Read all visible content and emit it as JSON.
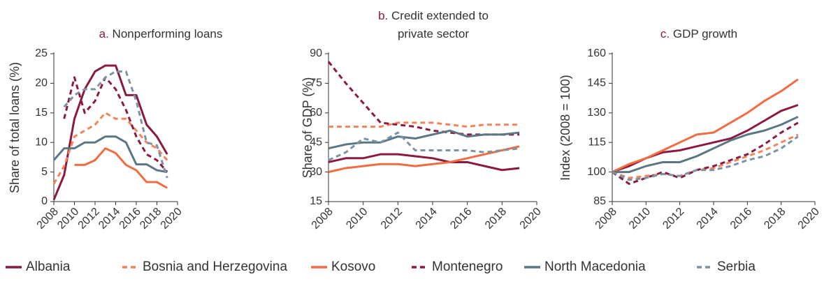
{
  "chart_data": [
    {
      "type": "line",
      "panel": "a.",
      "panel_color": "#8b1a3e",
      "title": [
        "Nonperforming loans"
      ],
      "y_label": "Share of total loans (%)",
      "x": [
        2008,
        2009,
        2010,
        2011,
        2012,
        2013,
        2014,
        2015,
        2016,
        2017,
        2018,
        2019
      ],
      "xlim": [
        2008,
        2020
      ],
      "xticks": [
        2008,
        2010,
        2012,
        2014,
        2016,
        2018,
        2020
      ],
      "ylim": [
        0,
        25
      ],
      "yticks": [
        0,
        5,
        10,
        15,
        20,
        25
      ],
      "grid": false,
      "series": [
        {
          "name": "Albania",
          "color": "#8b1a3e",
          "dashed": false,
          "values": [
            0.3,
            4.5,
            14,
            19,
            22,
            23,
            23,
            18,
            18,
            13,
            11,
            8
          ]
        },
        {
          "name": "Bosnia and Herzegovina",
          "color": "#f4825a",
          "dashed": true,
          "values": [
            3,
            6,
            11,
            12,
            13,
            15,
            14,
            14,
            12,
            10,
            9,
            7
          ]
        },
        {
          "name": "Kosovo",
          "color": "#f26b41",
          "dashed": false,
          "values": [
            null,
            null,
            6.2,
            6.2,
            7,
            9,
            8.2,
            6.2,
            5.3,
            3.3,
            3.3,
            2.3
          ]
        },
        {
          "name": "Montenegro",
          "color": "#8b1a3e",
          "dashed": true,
          "values": [
            null,
            14,
            21,
            15,
            17,
            21,
            19,
            15.5,
            11,
            8,
            7,
            5
          ]
        },
        {
          "name": "North Macedonia",
          "color": "#5b7684",
          "dashed": false,
          "values": [
            7,
            9,
            9,
            10,
            10,
            11,
            11,
            10,
            6.3,
            6.3,
            5.3,
            5
          ]
        },
        {
          "name": "Serbia",
          "color": "#7b93a3",
          "dashed": true,
          "values": [
            null,
            16,
            18,
            19,
            19,
            21,
            22,
            22,
            17,
            10,
            9.5,
            4
          ]
        }
      ]
    },
    {
      "type": "line",
      "panel": "b.",
      "panel_color": "#8b1a3e",
      "title": [
        "Credit extended to",
        "private sector"
      ],
      "y_label": "Share of GDP (%)",
      "x": [
        2008,
        2009,
        2010,
        2011,
        2012,
        2013,
        2014,
        2015,
        2016,
        2017,
        2018,
        2019
      ],
      "xlim": [
        2008,
        2020
      ],
      "xticks": [
        2008,
        2010,
        2012,
        2014,
        2016,
        2018,
        2020
      ],
      "ylim": [
        15,
        90
      ],
      "yticks": [
        15,
        30,
        45,
        60,
        75,
        90
      ],
      "grid": false,
      "series": [
        {
          "name": "Albania",
          "color": "#8b1a3e",
          "dashed": false,
          "values": [
            35,
            37,
            37,
            39,
            39,
            38,
            37,
            35,
            35,
            33,
            31,
            32
          ]
        },
        {
          "name": "Bosnia and Herzegovina",
          "color": "#f4825a",
          "dashed": true,
          "values": [
            53,
            53,
            53,
            53,
            55,
            55,
            55,
            54,
            53,
            54,
            54,
            54
          ]
        },
        {
          "name": "Kosovo",
          "color": "#f26b41",
          "dashed": false,
          "values": [
            30,
            32,
            33,
            34,
            34,
            33,
            34,
            35,
            37,
            39,
            41,
            43
          ]
        },
        {
          "name": "Montenegro",
          "color": "#8b1a3e",
          "dashed": true,
          "values": [
            86,
            75,
            65,
            55,
            54,
            53,
            51,
            50,
            49,
            49,
            49,
            49
          ]
        },
        {
          "name": "North Macedonia",
          "color": "#5b7684",
          "dashed": false,
          "values": [
            42,
            44,
            45,
            45,
            48,
            47,
            49,
            51,
            48,
            49,
            49,
            50
          ]
        },
        {
          "name": "Serbia",
          "color": "#7b93a3",
          "dashed": true,
          "values": [
            36,
            40,
            47,
            45,
            50,
            41,
            41,
            41,
            41,
            40,
            41,
            42
          ]
        }
      ]
    },
    {
      "type": "line",
      "panel": "c.",
      "panel_color": "#8b1a3e",
      "title": [
        "GDP growth"
      ],
      "y_label": "Index (2008 = 100)",
      "x": [
        2008,
        2009,
        2010,
        2011,
        2012,
        2013,
        2014,
        2015,
        2016,
        2017,
        2018,
        2019
      ],
      "xlim": [
        2008,
        2020
      ],
      "xticks": [
        2008,
        2010,
        2012,
        2014,
        2016,
        2018,
        2020
      ],
      "ylim": [
        85,
        160
      ],
      "yticks": [
        85,
        100,
        115,
        130,
        145,
        160
      ],
      "grid": false,
      "series": [
        {
          "name": "Albania",
          "color": "#8b1a3e",
          "dashed": false,
          "values": [
            100,
            103,
            107,
            110,
            111,
            113,
            115,
            117,
            121,
            126,
            131,
            134
          ]
        },
        {
          "name": "Bosnia and Herzegovina",
          "color": "#f4825a",
          "dashed": true,
          "values": [
            100,
            97,
            98,
            99,
            98,
            101,
            102,
            105,
            108,
            111,
            115,
            119
          ]
        },
        {
          "name": "Kosovo",
          "color": "#f26b41",
          "dashed": false,
          "values": [
            100,
            104,
            107,
            111,
            115,
            119,
            120,
            125,
            130,
            136,
            141,
            147
          ]
        },
        {
          "name": "Montenegro",
          "color": "#8b1a3e",
          "dashed": true,
          "values": [
            100,
            94,
            97,
            100,
            97,
            101,
            103,
            106,
            109,
            114,
            120,
            125
          ]
        },
        {
          "name": "North Macedonia",
          "color": "#5b7684",
          "dashed": false,
          "values": [
            100,
            100,
            103,
            105,
            105,
            108,
            112,
            116,
            119,
            121,
            124,
            128
          ]
        },
        {
          "name": "Serbia",
          "color": "#7b93a3",
          "dashed": true,
          "values": [
            100,
            96,
            97,
            99,
            98,
            101,
            101,
            103,
            106,
            108,
            112,
            118
          ]
        }
      ]
    }
  ]
}
